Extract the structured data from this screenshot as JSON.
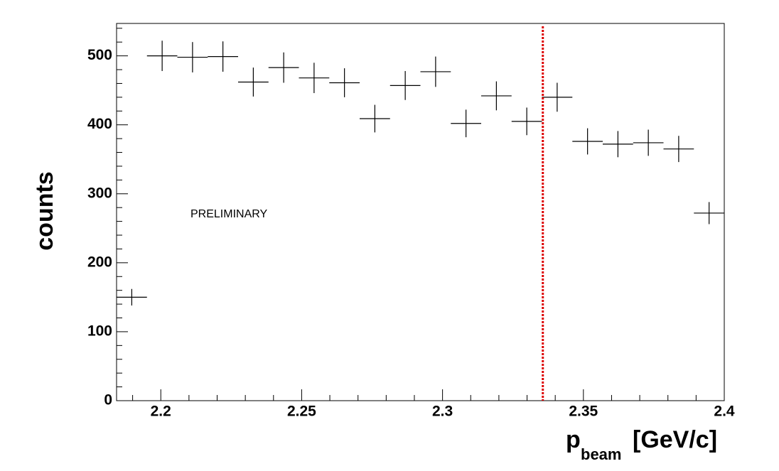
{
  "chart_data": {
    "type": "histogram",
    "ylabel": "counts",
    "xlabel": {
      "symbol": "p",
      "subscript": "beam",
      "unit": "[GeV/c]"
    },
    "annotation": "PRELIMINARY",
    "bins": [
      2.1843,
      2.19509,
      2.20587,
      2.21666,
      2.22744,
      2.23823,
      2.24901,
      2.2598,
      2.27058,
      2.28137,
      2.29215,
      2.30294,
      2.31372,
      2.32451,
      2.33529,
      2.34608,
      2.35686,
      2.36765,
      2.37843,
      2.38922,
      2.4
    ],
    "values": [
      150,
      500,
      498,
      499,
      462,
      483,
      468,
      461,
      409,
      457,
      477,
      402,
      442,
      405,
      440,
      376,
      372,
      374,
      365,
      272
    ],
    "errors": [
      12,
      22,
      22,
      22,
      21,
      22,
      22,
      21,
      20,
      21,
      22,
      20,
      21,
      20,
      21,
      19,
      19,
      19,
      19,
      16
    ],
    "color": "#000000",
    "vline": {
      "x": 2.3356,
      "color": "#dd0000"
    },
    "xlim": [
      2.1843,
      2.4
    ],
    "ylim": [
      0,
      547
    ],
    "xticks": [
      2.2,
      2.25,
      2.3,
      2.35,
      2.4
    ],
    "yticks": [
      0,
      100,
      200,
      300,
      400,
      500
    ],
    "xminorticks": [
      2.19,
      2.21,
      2.22,
      2.23,
      2.24,
      2.26,
      2.27,
      2.28,
      2.29,
      2.31,
      2.32,
      2.33,
      2.34,
      2.36,
      2.37,
      2.38,
      2.39
    ],
    "yminorticks": [
      20,
      40,
      60,
      80,
      120,
      140,
      160,
      180,
      220,
      240,
      260,
      280,
      320,
      340,
      360,
      380,
      420,
      440,
      460,
      480,
      520,
      540
    ]
  }
}
